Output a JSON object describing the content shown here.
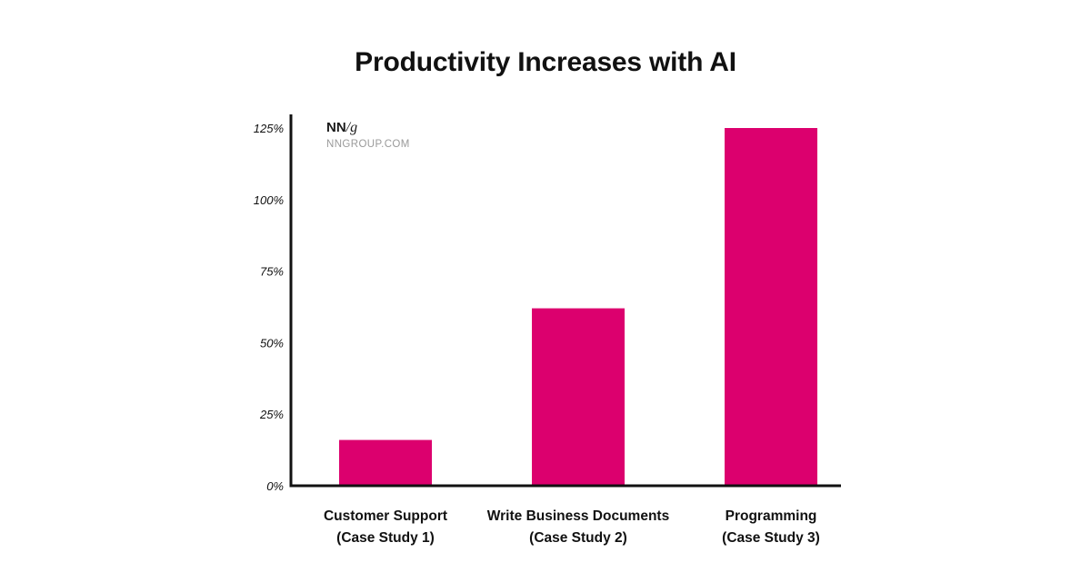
{
  "logo": {
    "mark_bold": "NN",
    "mark_rest": "/g",
    "url": "NNGROUP.COM"
  },
  "chart_data": {
    "type": "bar",
    "title": "Productivity Increases with AI",
    "xlabel": "",
    "ylabel": "",
    "categories": [
      [
        "Customer Support",
        "(Case Study 1)"
      ],
      [
        "Write Business Documents",
        "(Case Study 2)"
      ],
      [
        "Programming",
        "(Case Study 3)"
      ]
    ],
    "values": [
      16,
      62,
      125
    ],
    "ylim": [
      0,
      125
    ],
    "yticks": [
      0,
      25,
      50,
      75,
      100,
      125
    ],
    "ytick_labels": [
      "0%",
      "25%",
      "50%",
      "75%",
      "100%",
      "125%"
    ],
    "grid": false,
    "legend": "none",
    "colors": {
      "bar": "#dc006e",
      "axis": "#111111"
    }
  }
}
